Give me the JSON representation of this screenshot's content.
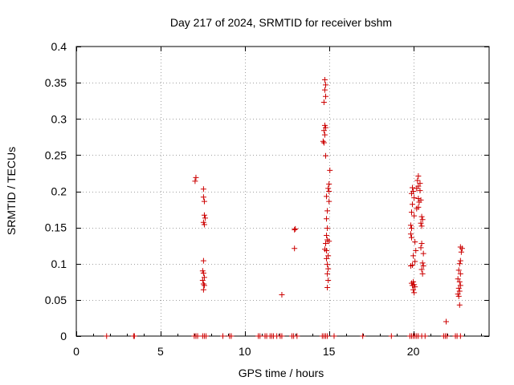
{
  "chart_data": {
    "type": "scatter",
    "title": "Day 217 of 2024, SRMTID for receiver bshm",
    "xlabel": "GPS time / hours",
    "ylabel": "SRMTID / TECUs",
    "xlim": [
      0,
      24.5
    ],
    "ylim": [
      0,
      0.4
    ],
    "grid": true,
    "x_ticks": [
      0,
      5,
      10,
      15,
      20
    ],
    "x_tick_labels": [
      "0",
      "5",
      "10",
      "15",
      "20"
    ],
    "y_ticks": [
      0,
      0.05,
      0.1,
      0.15,
      0.2,
      0.25,
      0.3,
      0.35,
      0.4
    ],
    "y_tick_labels": [
      "0",
      "0.05",
      "0.1",
      "0.15",
      "0.2",
      "0.25",
      "0.3",
      "0.35",
      "0.4"
    ],
    "marker": "+",
    "color": "#cc0000",
    "series": [
      {
        "name": "SRMTID",
        "points": [
          [
            1.8,
            0
          ],
          [
            3.4,
            0
          ],
          [
            3.45,
            0
          ],
          [
            7.0,
            0
          ],
          [
            7.1,
            0
          ],
          [
            7.2,
            0
          ],
          [
            7.5,
            0
          ],
          [
            7.6,
            0
          ],
          [
            7.7,
            0
          ],
          [
            7.05,
            0.214
          ],
          [
            7.1,
            0.219
          ],
          [
            7.55,
            0.203
          ],
          [
            7.55,
            0.192
          ],
          [
            7.6,
            0.186
          ],
          [
            7.6,
            0.167
          ],
          [
            7.65,
            0.163
          ],
          [
            7.55,
            0.157
          ],
          [
            7.6,
            0.154
          ],
          [
            7.55,
            0.104
          ],
          [
            7.5,
            0.09
          ],
          [
            7.55,
            0.087
          ],
          [
            7.6,
            0.081
          ],
          [
            7.5,
            0.077
          ],
          [
            7.55,
            0.072
          ],
          [
            7.6,
            0.07
          ],
          [
            7.55,
            0.064
          ],
          [
            8.7,
            0
          ],
          [
            9.1,
            0
          ],
          [
            9.2,
            0
          ],
          [
            10.8,
            0
          ],
          [
            10.9,
            0
          ],
          [
            11.2,
            0
          ],
          [
            11.3,
            0
          ],
          [
            11.5,
            0
          ],
          [
            11.6,
            0
          ],
          [
            11.7,
            0
          ],
          [
            11.9,
            0
          ],
          [
            12.1,
            0
          ],
          [
            12.2,
            0
          ],
          [
            12.2,
            0.057
          ],
          [
            12.8,
            0
          ],
          [
            12.9,
            0
          ],
          [
            13.1,
            0
          ],
          [
            12.95,
            0.147
          ],
          [
            13.0,
            0.148
          ],
          [
            12.95,
            0.121
          ],
          [
            14.6,
            0
          ],
          [
            14.7,
            0
          ],
          [
            14.8,
            0
          ],
          [
            14.9,
            0
          ],
          [
            15.3,
            0
          ],
          [
            14.75,
            0.354
          ],
          [
            14.8,
            0.347
          ],
          [
            14.75,
            0.34
          ],
          [
            14.8,
            0.331
          ],
          [
            14.7,
            0.323
          ],
          [
            14.75,
            0.291
          ],
          [
            14.8,
            0.288
          ],
          [
            14.7,
            0.284
          ],
          [
            14.75,
            0.278
          ],
          [
            14.65,
            0.269
          ],
          [
            14.7,
            0.267
          ],
          [
            14.8,
            0.249
          ],
          [
            15.05,
            0.229
          ],
          [
            15.0,
            0.21
          ],
          [
            14.95,
            0.204
          ],
          [
            15.0,
            0.2
          ],
          [
            14.85,
            0.193
          ],
          [
            15.0,
            0.186
          ],
          [
            14.9,
            0.173
          ],
          [
            14.85,
            0.162
          ],
          [
            14.9,
            0.149
          ],
          [
            14.85,
            0.139
          ],
          [
            14.9,
            0.133
          ],
          [
            15.0,
            0.131
          ],
          [
            14.8,
            0.128
          ],
          [
            14.75,
            0.12
          ],
          [
            14.85,
            0.118
          ],
          [
            14.95,
            0.111
          ],
          [
            14.85,
            0.107
          ],
          [
            14.9,
            0.099
          ],
          [
            14.95,
            0.093
          ],
          [
            14.9,
            0.086
          ],
          [
            14.95,
            0.077
          ],
          [
            14.9,
            0.067
          ],
          [
            17.0,
            0
          ],
          [
            18.7,
            0
          ],
          [
            19.8,
            0
          ],
          [
            19.9,
            0
          ],
          [
            20.0,
            0
          ],
          [
            20.1,
            0
          ],
          [
            20.2,
            0
          ],
          [
            20.3,
            0
          ],
          [
            20.5,
            0
          ],
          [
            20.7,
            0
          ],
          [
            20.3,
            0.221
          ],
          [
            20.25,
            0.215
          ],
          [
            20.4,
            0.211
          ],
          [
            20.3,
            0.207
          ],
          [
            20.2,
            0.204
          ],
          [
            20.4,
            0.201
          ],
          [
            19.95,
            0.205
          ],
          [
            20.0,
            0.2
          ],
          [
            19.9,
            0.197
          ],
          [
            20.05,
            0.191
          ],
          [
            20.3,
            0.19
          ],
          [
            20.45,
            0.188
          ],
          [
            20.35,
            0.185
          ],
          [
            20.3,
            0.178
          ],
          [
            20.2,
            0.176
          ],
          [
            19.95,
            0.182
          ],
          [
            19.9,
            0.171
          ],
          [
            20.05,
            0.166
          ],
          [
            20.5,
            0.165
          ],
          [
            20.55,
            0.161
          ],
          [
            20.45,
            0.156
          ],
          [
            20.5,
            0.152
          ],
          [
            19.85,
            0.153
          ],
          [
            19.9,
            0.149
          ],
          [
            19.85,
            0.141
          ],
          [
            19.9,
            0.136
          ],
          [
            20.1,
            0.13
          ],
          [
            20.5,
            0.128
          ],
          [
            20.45,
            0.122
          ],
          [
            20.6,
            0.114
          ],
          [
            20.15,
            0.118
          ],
          [
            20.0,
            0.111
          ],
          [
            20.1,
            0.103
          ],
          [
            19.95,
            0.098
          ],
          [
            19.85,
            0.097
          ],
          [
            20.55,
            0.101
          ],
          [
            20.6,
            0.097
          ],
          [
            20.5,
            0.092
          ],
          [
            20.55,
            0.086
          ],
          [
            20.0,
            0.075
          ],
          [
            20.05,
            0.071
          ],
          [
            19.95,
            0.07
          ],
          [
            20.1,
            0.068
          ],
          [
            20.0,
            0.064
          ],
          [
            20.05,
            0.06
          ],
          [
            19.9,
            0.073
          ],
          [
            21.8,
            0
          ],
          [
            21.9,
            0
          ],
          [
            22.0,
            0
          ],
          [
            22.5,
            0
          ],
          [
            22.6,
            0
          ],
          [
            21.95,
            0.02
          ],
          [
            22.8,
            0.123
          ],
          [
            22.9,
            0.121
          ],
          [
            22.85,
            0.116
          ],
          [
            22.8,
            0.104
          ],
          [
            22.75,
            0.1
          ],
          [
            22.7,
            0.091
          ],
          [
            22.8,
            0.086
          ],
          [
            22.65,
            0.079
          ],
          [
            22.75,
            0.075
          ],
          [
            22.8,
            0.07
          ],
          [
            22.7,
            0.066
          ],
          [
            22.75,
            0.062
          ],
          [
            22.65,
            0.058
          ],
          [
            22.7,
            0.055
          ],
          [
            22.75,
            0.043
          ],
          [
            22.8,
            0
          ]
        ]
      }
    ]
  }
}
